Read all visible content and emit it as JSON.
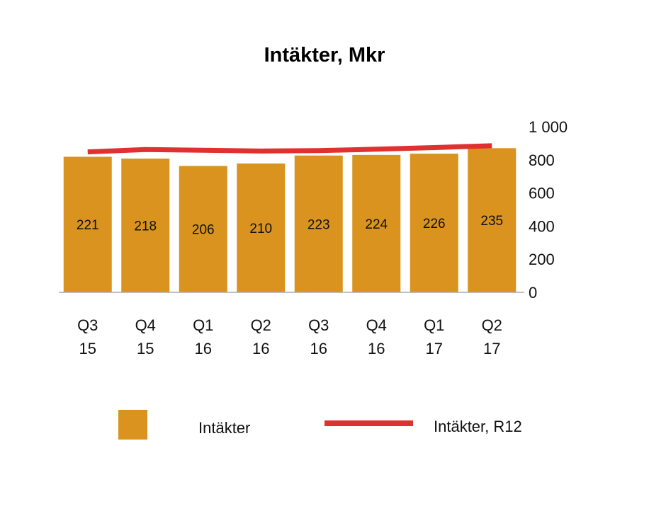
{
  "chart_data": {
    "type": "bar",
    "title": "Intäkter, Mkr",
    "categories": [
      [
        "Q3",
        "15"
      ],
      [
        "Q4",
        "15"
      ],
      [
        "Q1",
        "16"
      ],
      [
        "Q2",
        "16"
      ],
      [
        "Q3",
        "16"
      ],
      [
        "Q4",
        "16"
      ],
      [
        "Q1",
        "17"
      ],
      [
        "Q2",
        "17"
      ]
    ],
    "series": [
      {
        "name": "Intäkter",
        "type": "bar",
        "color": "#D9931E",
        "values": [
          221,
          218,
          206,
          210,
          223,
          224,
          226,
          235
        ],
        "data_labels": [
          "221",
          "218",
          "206",
          "210",
          "223",
          "224",
          "226",
          "235"
        ]
      },
      {
        "name": "Intäkter, R12",
        "type": "line",
        "color": "#E03030",
        "values": [
          848,
          862,
          858,
          853,
          856,
          864,
          874,
          885
        ]
      }
    ],
    "bar_axis": {
      "ylim": [
        0,
        270
      ]
    },
    "y_axis": {
      "position": "right",
      "ylim": [
        0,
        1000
      ],
      "ticks": [
        0,
        200,
        400,
        600,
        800,
        1000
      ],
      "tick_labels": [
        "0",
        "200",
        "400",
        "600",
        "800",
        "1 000"
      ]
    },
    "grid": false,
    "legend": "bottom"
  }
}
